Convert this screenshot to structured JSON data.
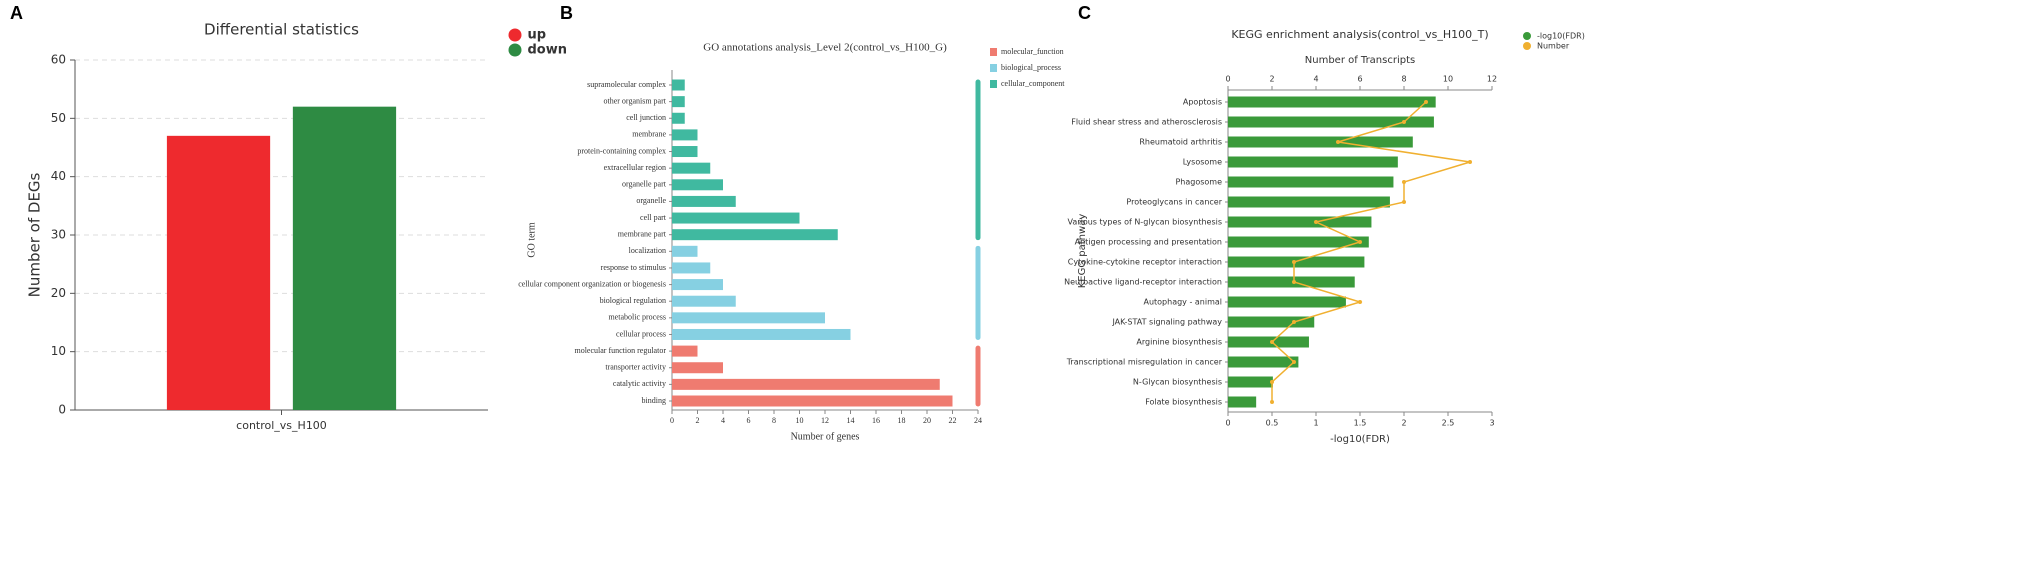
{
  "chart_data": [
    {
      "type": "bar",
      "panel_label": "A",
      "title": "Differential statistics",
      "ylabel": "Number of DEGs",
      "categories": [
        "control_vs_H100"
      ],
      "series": [
        {
          "name": "up",
          "color": "#ee2a2e",
          "values": [
            47
          ]
        },
        {
          "name": "down",
          "color": "#2e8b43",
          "values": [
            52
          ]
        }
      ],
      "ylim": [
        0,
        60
      ],
      "yticks": [
        0,
        10,
        20,
        30,
        40,
        50,
        60
      ],
      "grid": true,
      "legend": "upper right"
    },
    {
      "type": "barh",
      "panel_label": "B",
      "title": "GO annotations analysis_Level 2(control_vs_H100_G)",
      "xlabel": "Number of genes",
      "ylabel": "GO term",
      "categories": [
        "supramolecular complex",
        "other organism part",
        "cell junction",
        "membrane",
        "protein-containing complex",
        "extracellular region",
        "organelle part",
        "organelle",
        "cell part",
        "membrane part",
        "localization",
        "response to stimulus",
        "cellular component organization or biogenesis",
        "biological regulation",
        "metabolic process",
        "cellular process",
        "molecular function regulator",
        "transporter activity",
        "catalytic activity",
        "binding"
      ],
      "series": [
        {
          "name": "molecular_function",
          "color": "#ef7b70",
          "values": [
            null,
            null,
            null,
            null,
            null,
            null,
            null,
            null,
            null,
            null,
            null,
            null,
            null,
            null,
            null,
            null,
            2,
            4,
            21,
            22
          ]
        },
        {
          "name": "biological_process",
          "color": "#86d0e2",
          "values": [
            null,
            null,
            null,
            null,
            null,
            null,
            null,
            null,
            null,
            null,
            2,
            3,
            4,
            5,
            12,
            14,
            null,
            null,
            null,
            null
          ]
        },
        {
          "name": "cellular_component",
          "color": "#40b9a0",
          "values": [
            1,
            1,
            1,
            2,
            2,
            3,
            4,
            5,
            10,
            13,
            null,
            null,
            null,
            null,
            null,
            null,
            null,
            null,
            null,
            null
          ]
        }
      ],
      "xlim": [
        0,
        24
      ],
      "xticks": [
        0,
        2,
        4,
        6,
        8,
        10,
        12,
        14,
        16,
        18,
        20,
        22,
        24
      ],
      "grid": false,
      "legend": "upper right"
    },
    {
      "type": "barh",
      "panel_label": "C",
      "title": "KEGG enrichment analysis(control_vs_H100_T)",
      "x2label": "Number of Transcripts",
      "xlabel": "-log10(FDR)",
      "ylabel": "KEGG pathway",
      "categories": [
        "Apoptosis",
        "Fluid shear stress and atherosclerosis",
        "Rheumatoid arthritis",
        "Lysosome",
        "Phagosome",
        "Proteoglycans in cancer",
        "Various types of N-glycan biosynthesis",
        "Antigen processing and presentation",
        "Cytokine-cytokine receptor interaction",
        "Neuroactive ligand-receptor interaction",
        "Autophagy - animal",
        "JAK-STAT signaling pathway",
        "Arginine biosynthesis",
        "Transcriptional misregulation in cancer",
        "N-Glycan biosynthesis",
        "Folate biosynthesis"
      ],
      "series": [
        {
          "name": "-log10(FDR)",
          "color": "#3a9a3a",
          "values": [
            2.36,
            2.34,
            2.1,
            1.93,
            1.88,
            1.84,
            1.63,
            1.6,
            1.55,
            1.44,
            1.34,
            0.98,
            0.92,
            0.8,
            0.51,
            0.32
          ]
        },
        {
          "name": "Number",
          "color": "#f0b030",
          "axis": "x2",
          "values": [
            9,
            8,
            5,
            11,
            8,
            8,
            4,
            6,
            3,
            3,
            6,
            3,
            2,
            3,
            2,
            2
          ]
        }
      ],
      "xlim": [
        0,
        3
      ],
      "xticks": [
        0,
        0.5,
        1,
        1.5,
        2,
        2.5,
        3
      ],
      "x2lim": [
        0,
        12
      ],
      "x2ticks": [
        0,
        2,
        4,
        6,
        8,
        10,
        12
      ],
      "grid": false,
      "legend": "upper right"
    }
  ]
}
